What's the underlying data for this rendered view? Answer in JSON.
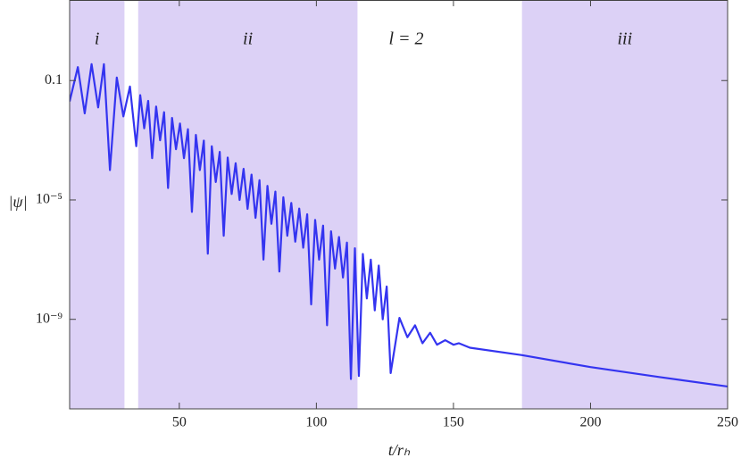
{
  "chart_data": {
    "type": "line",
    "xlabel": "t/rₕ",
    "ylabel": "|ψ|",
    "annotation": "l = 2",
    "log_y": true,
    "color": "#3434f0",
    "region_color": "#dcd1f6",
    "regions": [
      {
        "label": "i",
        "xrange": [
          10,
          30
        ]
      },
      {
        "label": "ii",
        "xrange": [
          35,
          115
        ]
      },
      {
        "label": "iii",
        "xrange": [
          175,
          250
        ]
      }
    ],
    "xlim": [
      10,
      250
    ],
    "xticks": [
      50,
      100,
      150,
      200,
      250
    ],
    "ylim": [
      1e-12,
      50
    ],
    "yticks": [
      0.1,
      {
        "value": 1e-05,
        "label": "10⁻⁵"
      },
      {
        "value": 1e-09,
        "label": "10⁻⁹"
      }
    ],
    "x": [
      10,
      13,
      15.5,
      18,
      20.4,
      22.5,
      24.7,
      27.2,
      29.6,
      32,
      34.3,
      35.75,
      37.2,
      38.65,
      40.1,
      41.55,
      43.0,
      44.45,
      45.9,
      47.35,
      48.8,
      50.25,
      51.7,
      53.15,
      54.6,
      56.05,
      57.5,
      58.95,
      60.4,
      61.85,
      63.3,
      64.75,
      66.2,
      67.65,
      69.1,
      70.55,
      72.0,
      73.45,
      74.9,
      76.35,
      77.8,
      79.25,
      80.7,
      82.15,
      83.6,
      85.05,
      86.5,
      87.95,
      89.4,
      90.85,
      92.3,
      93.75,
      95.2,
      96.65,
      98.1,
      99.55,
      101.0,
      102.45,
      103.9,
      105.35,
      106.8,
      108.25,
      109.7,
      111.15,
      112.6,
      114.05,
      115.5,
      116.95,
      118.4,
      119.85,
      121.3,
      122.75,
      124.2,
      125.65,
      127.1,
      130.3,
      133.2,
      136,
      138.7,
      141.5,
      144,
      147,
      150,
      152,
      156,
      175,
      200,
      225,
      250
    ],
    "values": [
      0.02,
      0.282,
      0.00794,
      0.355,
      0.0126,
      0.355,
      0.0001,
      0.126,
      0.00631,
      0.0631,
      0.000631,
      0.0324,
      0.00251,
      0.0209,
      0.000251,
      0.0135,
      0.001,
      0.00871,
      2.51e-05,
      0.00562,
      0.000501,
      0.00363,
      0.000251,
      0.00234,
      3.98e-06,
      0.00151,
      0.0001,
      0.000977,
      1.58e-07,
      0.000631,
      3.98e-05,
      0.000407,
      6.31e-07,
      0.000263,
      1.58e-05,
      0.00017,
      1e-05,
      0.00011,
      5.01e-06,
      7.08e-05,
      2.51e-06,
      4.57e-05,
      1e-07,
      2.95e-05,
      1.58e-06,
      1.91e-05,
      3.98e-08,
      1.23e-05,
      6.31e-07,
      7.94e-06,
      3.98e-07,
      5.13e-06,
      2.51e-07,
      3.31e-06,
      3.16e-09,
      2.14e-06,
      1e-07,
      1.38e-06,
      6.31e-10,
      8.91e-07,
      5.01e-08,
      5.75e-07,
      2.51e-08,
      3.72e-07,
      1e-11,
      2.4e-07,
      1.26e-11,
      1.55e-07,
      5.01e-09,
      1e-07,
      2e-09,
      6.31e-08,
      1e-09,
      1.26e-08,
      1.58e-11,
      1.12e-09,
      2.51e-10,
      6.31e-10,
      1.58e-10,
      3.55e-10,
      1.41e-10,
      2e-10,
      1.41e-10,
      1.58e-10,
      1.12e-10,
      6.31e-11,
      2.51e-11,
      1.17e-11,
      5.62e-12
    ]
  }
}
